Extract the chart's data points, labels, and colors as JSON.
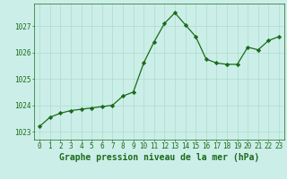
{
  "x": [
    0,
    1,
    2,
    3,
    4,
    5,
    6,
    7,
    8,
    9,
    10,
    11,
    12,
    13,
    14,
    15,
    16,
    17,
    18,
    19,
    20,
    21,
    22,
    23
  ],
  "y": [
    1023.2,
    1023.55,
    1023.7,
    1023.8,
    1023.85,
    1023.9,
    1023.95,
    1024.0,
    1024.35,
    1024.5,
    1025.6,
    1026.4,
    1027.1,
    1027.5,
    1027.05,
    1026.6,
    1025.75,
    1025.6,
    1025.55,
    1025.55,
    1026.2,
    1026.1,
    1026.45,
    1026.6
  ],
  "line_color": "#1a6b1a",
  "marker": "D",
  "marker_size": 2.2,
  "background_color": "#cceee8",
  "grid_color": "#aaddcc",
  "xlabel": "Graphe pression niveau de la mer (hPa)",
  "xlabel_color": "#1a6b1a",
  "xlabel_fontsize": 7.0,
  "tick_color": "#1a6b1a",
  "tick_fontsize": 5.5,
  "yticks": [
    1023,
    1024,
    1025,
    1026,
    1027
  ],
  "xticks": [
    0,
    1,
    2,
    3,
    4,
    5,
    6,
    7,
    8,
    9,
    10,
    11,
    12,
    13,
    14,
    15,
    16,
    17,
    18,
    19,
    20,
    21,
    22,
    23
  ],
  "ylim": [
    1022.7,
    1027.85
  ],
  "xlim": [
    -0.5,
    23.5
  ]
}
